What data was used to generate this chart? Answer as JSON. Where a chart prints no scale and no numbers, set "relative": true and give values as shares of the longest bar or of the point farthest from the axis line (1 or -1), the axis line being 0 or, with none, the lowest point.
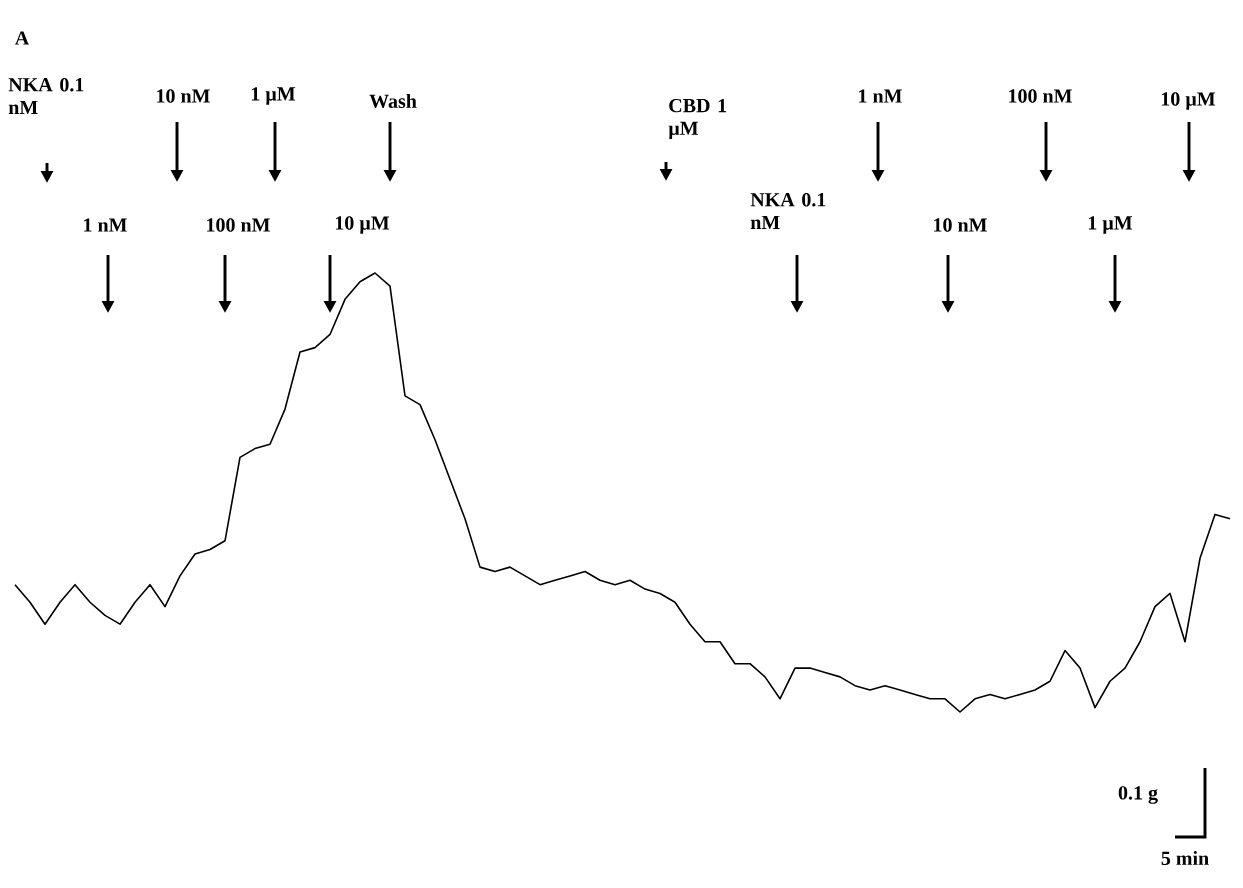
{
  "chart_data": {
    "type": "line",
    "relative": true,
    "color": "#000000",
    "categories": [
      null,
      null,
      null,
      null,
      null,
      null,
      null,
      null,
      null,
      null,
      null,
      null,
      null,
      null,
      null,
      null,
      null,
      null,
      null,
      null,
      null,
      null,
      null,
      null,
      null,
      null,
      null,
      null,
      null,
      null,
      null,
      null,
      null,
      null,
      null,
      null,
      null,
      null,
      null,
      null,
      null,
      null,
      null,
      null,
      null,
      null,
      null,
      null,
      null,
      null,
      null,
      null,
      null,
      null,
      null,
      null,
      null,
      null,
      null,
      null,
      null,
      null,
      null,
      null,
      null,
      null,
      null,
      null,
      null,
      null,
      null,
      null,
      null,
      null,
      null,
      null,
      null,
      null,
      null,
      null,
      null,
      null
    ],
    "values": [
      0.29,
      0.25,
      0.2,
      0.25,
      0.29,
      0.25,
      0.22,
      0.2,
      0.25,
      0.29,
      0.24,
      0.31,
      0.36,
      0.37,
      0.39,
      0.58,
      0.6,
      0.61,
      0.69,
      0.82,
      0.83,
      0.86,
      0.94,
      0.98,
      1.0,
      0.97,
      0.72,
      0.7,
      0.62,
      0.53,
      0.44,
      0.33,
      0.32,
      0.33,
      0.31,
      0.29,
      0.3,
      0.31,
      0.32,
      0.3,
      0.29,
      0.3,
      0.28,
      0.27,
      0.25,
      0.2,
      0.16,
      0.16,
      0.11,
      0.11,
      0.08,
      0.03,
      0.1,
      0.1,
      0.09,
      0.08,
      0.06,
      0.05,
      0.06,
      0.05,
      0.04,
      0.03,
      0.03,
      0.0,
      0.03,
      0.04,
      0.03,
      0.04,
      0.05,
      0.07,
      0.14,
      0.1,
      0.01,
      0.07,
      0.1,
      0.16,
      0.24,
      0.27,
      0.16,
      0.35,
      0.45,
      0.44
    ],
    "annotations": [
      "A",
      "NKA 0.1 nM",
      "10 nM",
      "1 µM",
      "Wash",
      "1 nM",
      "100 nM",
      "10 µM",
      "CBD 1 µM",
      "NKA 0.1 nM",
      "1 nM",
      "100 nM",
      "10 µM",
      "10 nM",
      "1 µM",
      "0.1 g",
      "5 min"
    ]
  }
}
